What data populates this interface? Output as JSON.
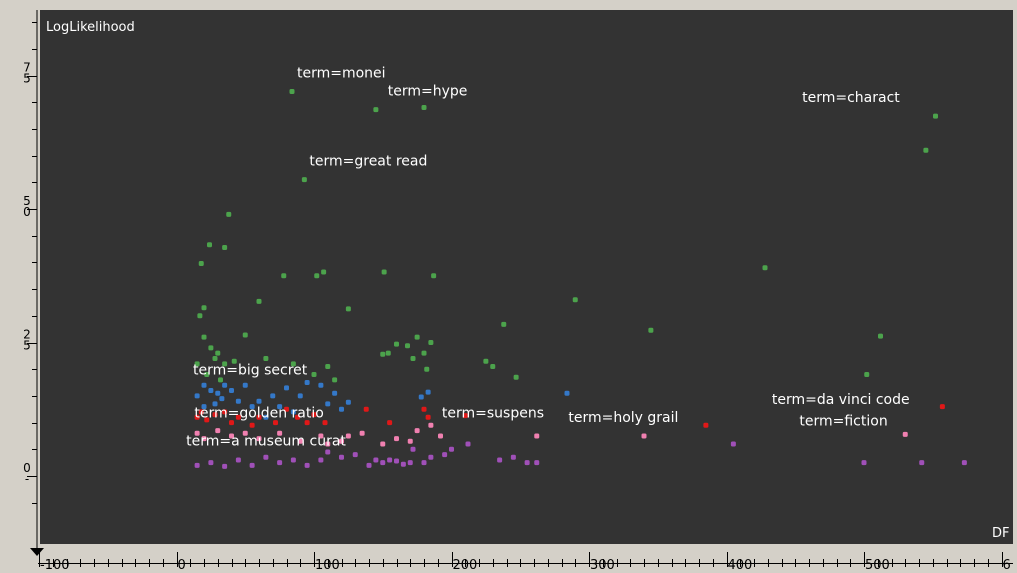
{
  "chart_data": {
    "type": "scatter",
    "xlabel": "DF",
    "ylabel": "LogLikelihood",
    "xlim": [
      -100,
      610
    ],
    "ylim": [
      -3,
      89
    ],
    "grid": false,
    "background": "#333333",
    "x_ticks": [
      "-100",
      "0",
      "100",
      "200",
      "300",
      "400",
      "500",
      "6"
    ],
    "y_ticks": [
      {
        "value": 0,
        "lines": [
          "0",
          "-"
        ]
      },
      {
        "value": 25,
        "lines": [
          "2",
          "5"
        ]
      },
      {
        "value": 50,
        "lines": [
          "5",
          "0"
        ]
      },
      {
        "value": 75,
        "lines": [
          "7",
          "5"
        ]
      }
    ],
    "series": [
      {
        "color": "#4ca34c",
        "points": [
          [
            84,
            72
          ],
          [
            145,
            68.6
          ],
          [
            180,
            69
          ],
          [
            552,
            67.4
          ],
          [
            545,
            61
          ],
          [
            93,
            55.5
          ],
          [
            38,
            49
          ],
          [
            35,
            42.8
          ],
          [
            24,
            43.3
          ],
          [
            18,
            39.8
          ],
          [
            78,
            37.5
          ],
          [
            102,
            37.5
          ],
          [
            107,
            38.2
          ],
          [
            151,
            38.2
          ],
          [
            187,
            37.5
          ],
          [
            60,
            32.7
          ],
          [
            125,
            31.3
          ],
          [
            20,
            31.5
          ],
          [
            17,
            30
          ],
          [
            290,
            33
          ],
          [
            238,
            28.4
          ],
          [
            345,
            27.3
          ],
          [
            428,
            39
          ],
          [
            512,
            26.2
          ],
          [
            502,
            19
          ],
          [
            42,
            21.5
          ],
          [
            50,
            26.4
          ],
          [
            65,
            22
          ],
          [
            85,
            21
          ],
          [
            110,
            20.5
          ],
          [
            168,
            24.4
          ],
          [
            175,
            26
          ],
          [
            180,
            23
          ],
          [
            185,
            25
          ],
          [
            172,
            22
          ],
          [
            182,
            20
          ],
          [
            154,
            23
          ],
          [
            160,
            24.7
          ],
          [
            150,
            22.8
          ],
          [
            225,
            21.5
          ],
          [
            230,
            20.5
          ],
          [
            247,
            18.5
          ],
          [
            100,
            19
          ],
          [
            115,
            18
          ],
          [
            20,
            26
          ],
          [
            25,
            24
          ],
          [
            30,
            23
          ],
          [
            15,
            21
          ],
          [
            28,
            22
          ],
          [
            35,
            21
          ],
          [
            22,
            19
          ],
          [
            32,
            18
          ]
        ]
      },
      {
        "color": "#3478c8",
        "points": [
          [
            20,
            17
          ],
          [
            25,
            16
          ],
          [
            30,
            15.5
          ],
          [
            35,
            17
          ],
          [
            40,
            16
          ],
          [
            15,
            15
          ],
          [
            28,
            13.5
          ],
          [
            45,
            14
          ],
          [
            55,
            13
          ],
          [
            60,
            14
          ],
          [
            70,
            15
          ],
          [
            80,
            16.5
          ],
          [
            90,
            15
          ],
          [
            95,
            17.5
          ],
          [
            105,
            17
          ],
          [
            115,
            15.5
          ],
          [
            20,
            13
          ],
          [
            33,
            14.5
          ],
          [
            65,
            11
          ],
          [
            75,
            13
          ],
          [
            85,
            12
          ],
          [
            110,
            13.5
          ],
          [
            120,
            12.5
          ],
          [
            125,
            13.8
          ],
          [
            50,
            17
          ],
          [
            183,
            15.7
          ],
          [
            178,
            14.8
          ],
          [
            284,
            15.5
          ]
        ]
      },
      {
        "color": "#e01818",
        "points": [
          [
            15,
            11
          ],
          [
            18,
            12
          ],
          [
            22,
            10.5
          ],
          [
            28,
            11.5
          ],
          [
            35,
            12
          ],
          [
            40,
            10
          ],
          [
            45,
            11
          ],
          [
            55,
            9.5
          ],
          [
            60,
            11
          ],
          [
            72,
            10
          ],
          [
            80,
            12.5
          ],
          [
            88,
            11
          ],
          [
            95,
            10
          ],
          [
            100,
            11.5
          ],
          [
            108,
            10
          ],
          [
            138,
            12.5
          ],
          [
            180,
            12.5
          ],
          [
            183,
            11
          ],
          [
            155,
            10
          ],
          [
            210,
            11.3
          ],
          [
            385,
            9.5
          ],
          [
            557,
            13
          ]
        ]
      },
      {
        "color": "#f080b0",
        "points": [
          [
            15,
            8
          ],
          [
            20,
            7
          ],
          [
            30,
            8.5
          ],
          [
            40,
            7.5
          ],
          [
            50,
            8
          ],
          [
            60,
            7
          ],
          [
            75,
            8
          ],
          [
            90,
            6.5
          ],
          [
            105,
            7.5
          ],
          [
            110,
            6
          ],
          [
            120,
            6.5
          ],
          [
            125,
            7.5
          ],
          [
            135,
            8
          ],
          [
            150,
            6
          ],
          [
            160,
            7
          ],
          [
            170,
            6.5
          ],
          [
            175,
            8.5
          ],
          [
            185,
            9.5
          ],
          [
            192,
            7.5
          ],
          [
            262,
            7.5
          ],
          [
            340,
            7.5
          ],
          [
            530,
            7.8
          ]
        ]
      },
      {
        "color": "#a050b8",
        "points": [
          [
            15,
            2
          ],
          [
            25,
            2.5
          ],
          [
            35,
            1.8
          ],
          [
            45,
            3
          ],
          [
            55,
            2
          ],
          [
            65,
            3.5
          ],
          [
            75,
            2.5
          ],
          [
            85,
            3
          ],
          [
            95,
            2
          ],
          [
            105,
            3
          ],
          [
            110,
            4.5
          ],
          [
            120,
            3.5
          ],
          [
            130,
            4
          ],
          [
            140,
            2
          ],
          [
            145,
            3
          ],
          [
            150,
            2.5
          ],
          [
            155,
            3
          ],
          [
            160,
            2.8
          ],
          [
            165,
            2.2
          ],
          [
            170,
            2.5
          ],
          [
            172,
            5
          ],
          [
            180,
            2.5
          ],
          [
            185,
            3.5
          ],
          [
            195,
            4
          ],
          [
            200,
            5
          ],
          [
            212,
            6
          ],
          [
            235,
            3
          ],
          [
            245,
            3.5
          ],
          [
            255,
            2.5
          ],
          [
            262,
            2.5
          ],
          [
            405,
            6
          ],
          [
            500,
            2.5
          ],
          [
            542,
            2.5
          ],
          [
            573,
            2.5
          ]
        ]
      }
    ],
    "annotations": [
      {
        "text": "term=monei",
        "x": 84,
        "y": 72,
        "dx": 5,
        "dy": -14
      },
      {
        "text": "term=hype",
        "x": 150,
        "y": 68.6,
        "dx": 5,
        "dy": -14
      },
      {
        "text": "term=charact",
        "x": 455,
        "y": 67.4,
        "dx": 0,
        "dy": -14
      },
      {
        "text": "term=great read",
        "x": 93,
        "y": 55.5,
        "dx": 5,
        "dy": -14
      },
      {
        "text": "term=big secret",
        "x": 12,
        "y": 19,
        "dx": 0,
        "dy": 0
      },
      {
        "text": "term=golden ratio",
        "x": 13,
        "y": 11,
        "dx": 0,
        "dy": 0
      },
      {
        "text": "term=suspens",
        "x": 193,
        "y": 11.3,
        "dx": 0,
        "dy": 2
      },
      {
        "text": "term=holy grail",
        "x": 285,
        "y": 10.5,
        "dx": 0,
        "dy": 2
      },
      {
        "text": "term=a museum curat",
        "x": 7,
        "y": 5.7,
        "dx": 0,
        "dy": 0
      },
      {
        "text": "term=da vinci code",
        "x": 433,
        "y": 13.5,
        "dx": 0,
        "dy": 0
      },
      {
        "text": "term=fiction",
        "x": 453,
        "y": 9.5,
        "dx": 0,
        "dy": 0
      }
    ]
  }
}
